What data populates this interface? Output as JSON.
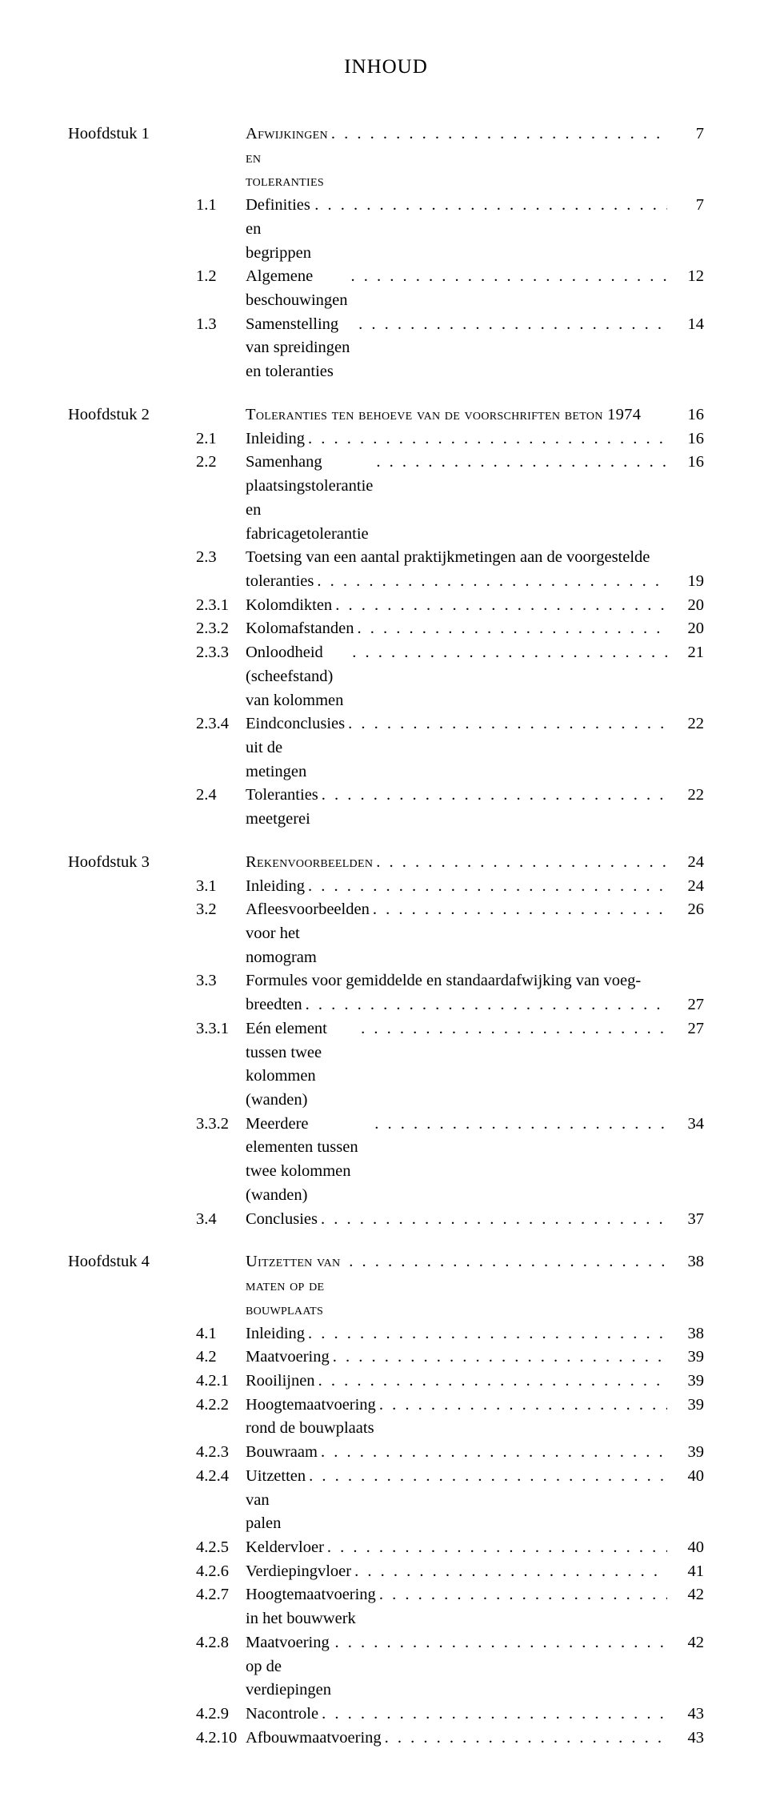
{
  "title": "INHOUD",
  "leader_dots": ". . . . . . . . . . . . . . . . . . . . . . . . . . . . . . . . . . . . . . . . . . . . . . . . . . . . . . . . . . . . . . . .",
  "blocks": [
    {
      "rows": [
        {
          "chapter": "Hoofdstuk 1",
          "section": "",
          "text": "Afwijkingen en toleranties",
          "smallcaps": true,
          "page": "7"
        },
        {
          "chapter": "",
          "section": "1.1",
          "text": "Definities en begrippen",
          "page": "7"
        },
        {
          "chapter": "",
          "section": "1.2",
          "text": "Algemene beschouwingen",
          "page": "12"
        },
        {
          "chapter": "",
          "section": "1.3",
          "text": "Samenstelling van spreidingen en toleranties",
          "page": "14"
        }
      ]
    },
    {
      "rows": [
        {
          "chapter": "Hoofdstuk 2",
          "section": "",
          "text": "Toleranties ten behoeve van de voorschriften beton 1974",
          "smallcaps": true,
          "no_leader": true,
          "page": "16"
        },
        {
          "chapter": "",
          "section": "2.1",
          "text": "Inleiding",
          "page": "16"
        },
        {
          "chapter": "",
          "section": "2.2",
          "text": "Samenhang plaatsingstolerantie en fabricagetolerantie",
          "page": "16"
        },
        {
          "chapter": "",
          "section": "2.3",
          "text": "Toetsing van een aantal praktijkmetingen aan de voorgestelde",
          "no_leader": true,
          "no_page": true
        },
        {
          "chapter": "",
          "section": "",
          "text": "toleranties",
          "page": "19"
        },
        {
          "chapter": "",
          "section": "2.3.1",
          "text": "Kolomdikten",
          "page": "20"
        },
        {
          "chapter": "",
          "section": "2.3.2",
          "text": "Kolomafstanden",
          "page": "20"
        },
        {
          "chapter": "",
          "section": "2.3.3",
          "text": "Onloodheid (scheefstand) van kolommen",
          "page": "21"
        },
        {
          "chapter": "",
          "section": "2.3.4",
          "text": "Eindconclusies uit de metingen",
          "page": "22"
        },
        {
          "chapter": "",
          "section": "2.4",
          "text": "Toleranties meetgerei",
          "page": "22"
        }
      ]
    },
    {
      "rows": [
        {
          "chapter": "Hoofdstuk 3",
          "section": "",
          "text": "Rekenvoorbeelden",
          "smallcaps": true,
          "page": "24"
        },
        {
          "chapter": "",
          "section": "3.1",
          "text": "Inleiding",
          "page": "24"
        },
        {
          "chapter": "",
          "section": "3.2",
          "text": "Afleesvoorbeelden voor het nomogram",
          "page": "26"
        },
        {
          "chapter": "",
          "section": "3.3",
          "text": "Formules voor gemiddelde en standaardafwijking van voeg-",
          "no_leader": true,
          "no_page": true
        },
        {
          "chapter": "",
          "section": "",
          "text": "breedten",
          "page": "27"
        },
        {
          "chapter": "",
          "section": "3.3.1",
          "text": "Eén element tussen twee kolommen (wanden)",
          "page": "27"
        },
        {
          "chapter": "",
          "section": "3.3.2",
          "text": "Meerdere elementen tussen twee kolommen (wanden)",
          "page": "34"
        },
        {
          "chapter": "",
          "section": "3.4",
          "text": "Conclusies",
          "page": "37"
        }
      ]
    },
    {
      "rows": [
        {
          "chapter": "Hoofdstuk 4",
          "section": "",
          "text": "Uitzetten van maten op de bouwplaats",
          "smallcaps": true,
          "page": "38"
        },
        {
          "chapter": "",
          "section": "4.1",
          "text": "Inleiding",
          "page": "38"
        },
        {
          "chapter": "",
          "section": "4.2",
          "text": "Maatvoering",
          "page": "39"
        },
        {
          "chapter": "",
          "section": "4.2.1",
          "text": "Rooilijnen",
          "page": "39"
        },
        {
          "chapter": "",
          "section": "4.2.2",
          "text": "Hoogtemaatvoering rond de bouwplaats",
          "page": "39"
        },
        {
          "chapter": "",
          "section": "4.2.3",
          "text": "Bouwraam",
          "page": "39"
        },
        {
          "chapter": "",
          "section": "4.2.4",
          "text": "Uitzetten van palen",
          "page": "40"
        },
        {
          "chapter": "",
          "section": "4.2.5",
          "text": "Keldervloer",
          "page": "40"
        },
        {
          "chapter": "",
          "section": "4.2.6",
          "text": "Verdiepingvloer",
          "page": "41"
        },
        {
          "chapter": "",
          "section": "4.2.7",
          "text": "Hoogtemaatvoering in het bouwwerk",
          "page": "42"
        },
        {
          "chapter": "",
          "section": "4.2.8",
          "text": "Maatvoering op de verdiepingen",
          "page": "42"
        },
        {
          "chapter": "",
          "section": "4.2.9",
          "text": "Nacontrole",
          "page": "43"
        },
        {
          "chapter": "",
          "section": "4.2.10",
          "text": "Afbouwmaatvoering",
          "page": "43"
        }
      ]
    }
  ]
}
